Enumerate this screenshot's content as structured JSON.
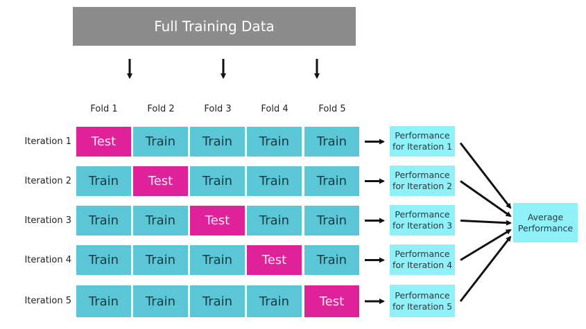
{
  "title": "Full Training Data",
  "folds": [
    "Fold 1",
    "Fold 2",
    "Fold 3",
    "Fold 4",
    "Fold 5"
  ],
  "iterations": [
    {
      "label": "Iteration 1",
      "cells": [
        "Test",
        "Train",
        "Train",
        "Train",
        "Train"
      ],
      "performance": "Performance for Iteration 1"
    },
    {
      "label": "Iteration 2",
      "cells": [
        "Train",
        "Test",
        "Train",
        "Train",
        "Train"
      ],
      "performance": "Performance for Iteration 2"
    },
    {
      "label": "Iteration 3",
      "cells": [
        "Train",
        "Train",
        "Test",
        "Train",
        "Train"
      ],
      "performance": "Performance for Iteration 3"
    },
    {
      "label": "Iteration 4",
      "cells": [
        "Train",
        "Train",
        "Train",
        "Test",
        "Train"
      ],
      "performance": "Performance for Iteration 4"
    },
    {
      "label": "Iteration 5",
      "cells": [
        "Train",
        "Train",
        "Train",
        "Train",
        "Test"
      ],
      "performance": "Performance for Iteration 5"
    }
  ],
  "average": "Average Performance",
  "colors": {
    "train": "#5ac6d6",
    "test": "#e0229a",
    "performance": "#8ff0f8",
    "header": "#8c8c8c"
  }
}
